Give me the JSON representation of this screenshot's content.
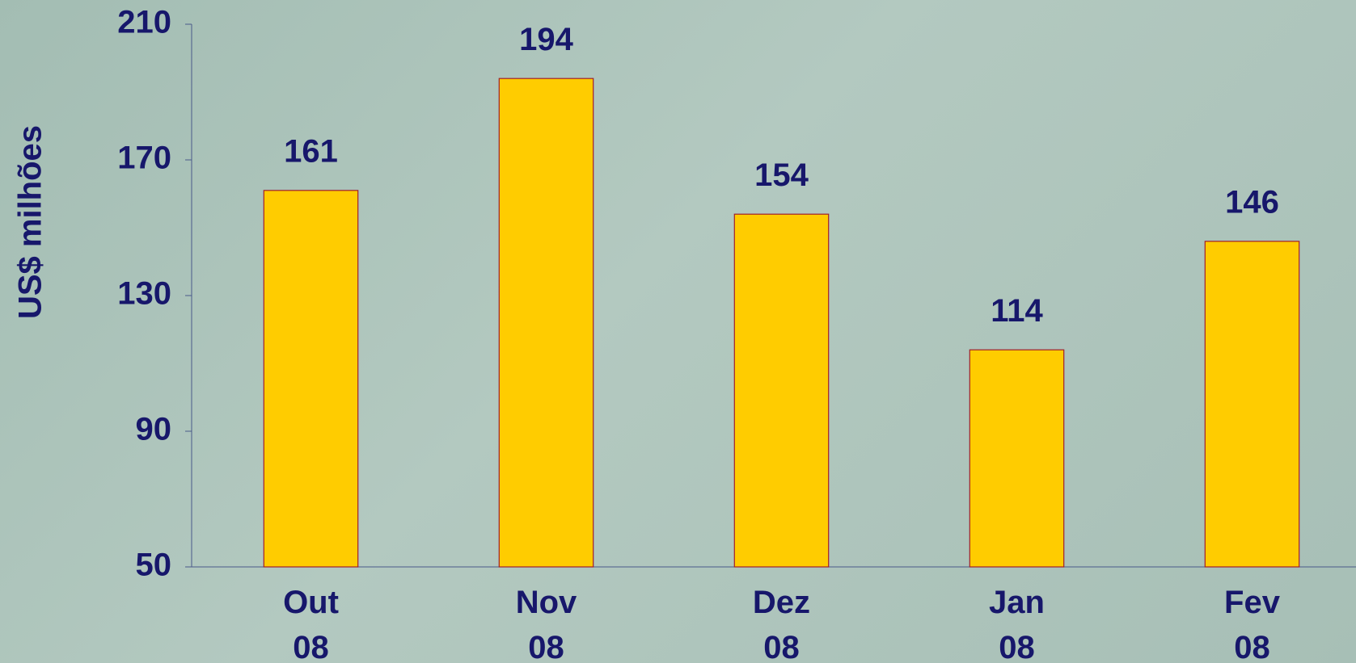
{
  "chart_data": {
    "type": "bar",
    "y_label": "US$ milhões",
    "categories": [
      "Out 08",
      "Nov 08",
      "Dez 08",
      "Jan 08",
      "Fev 08"
    ],
    "values": [
      161,
      194,
      154,
      114,
      146
    ],
    "color": "#ffcc00",
    "ylim": [
      50,
      210
    ],
    "yticks": [
      50,
      90,
      130,
      170,
      210
    ]
  }
}
